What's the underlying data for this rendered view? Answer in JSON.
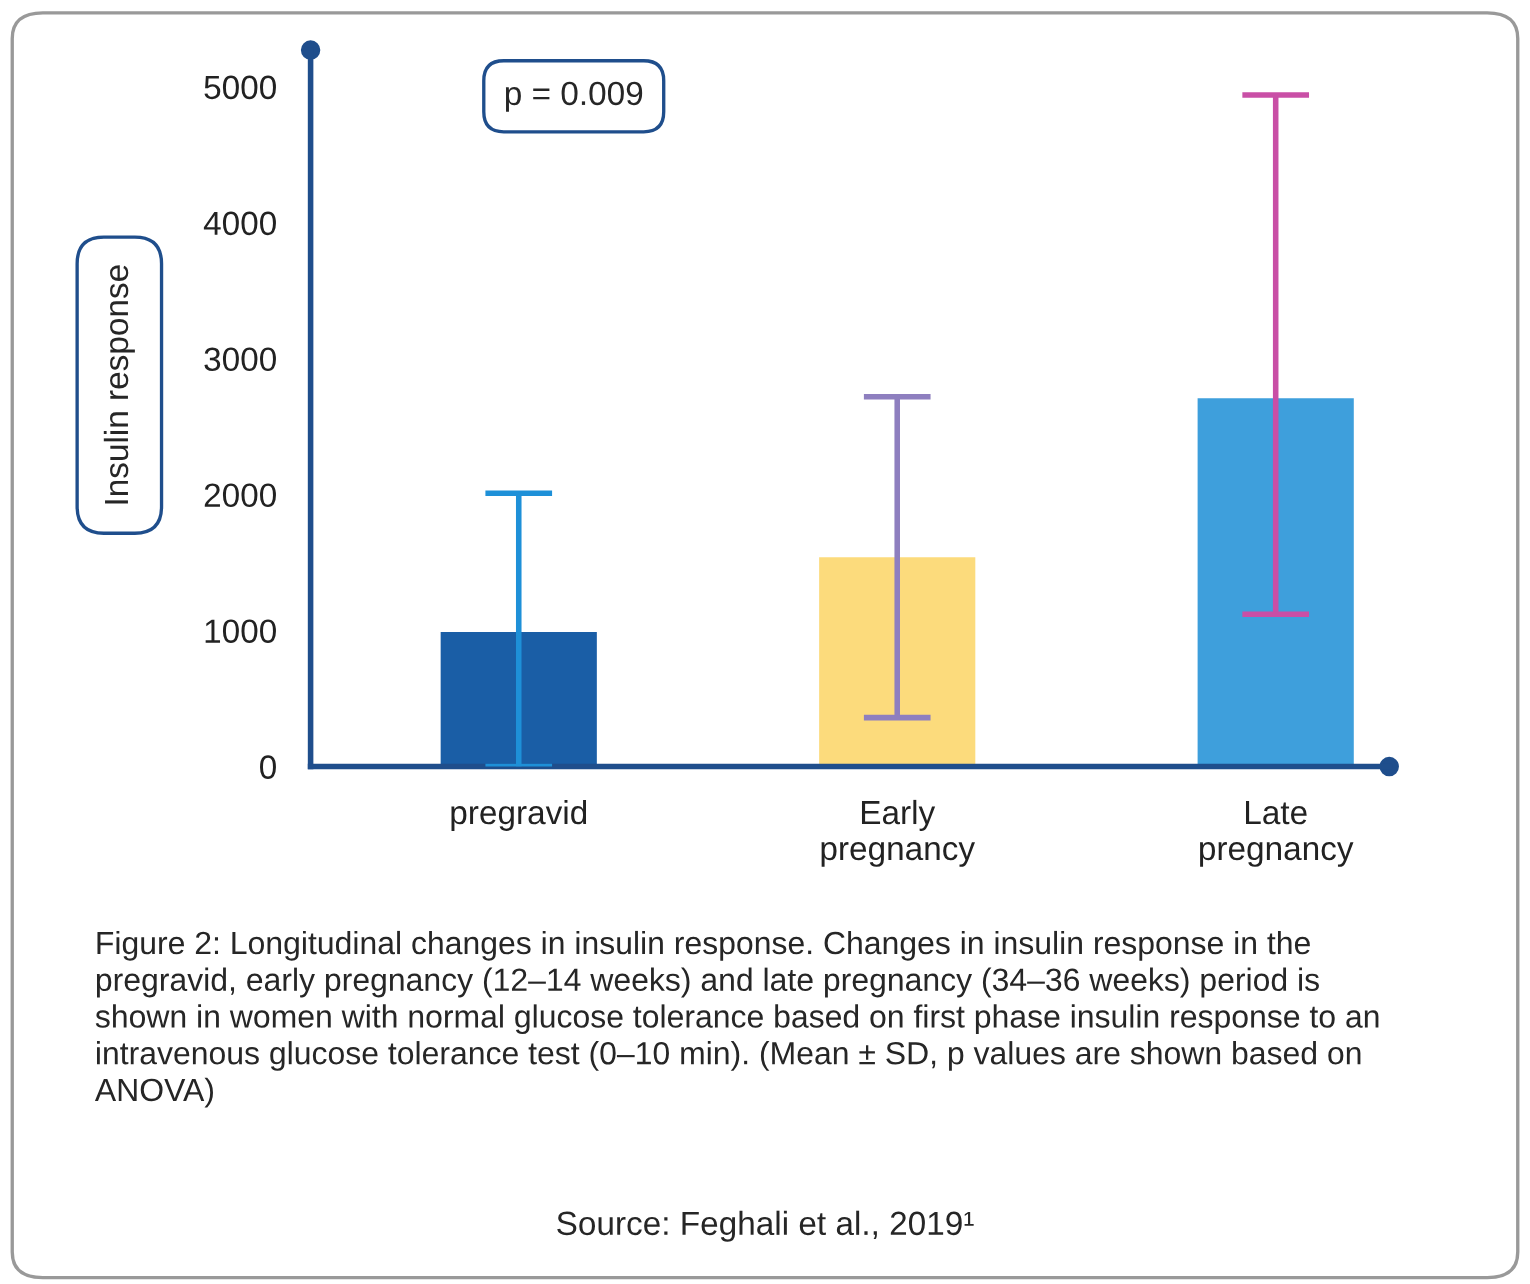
{
  "chart_data": {
    "type": "bar",
    "categories": [
      "pregravid",
      "Early\npregnancy",
      "Late\npregnancy"
    ],
    "values": [
      1000,
      1550,
      2720
    ],
    "colors": [
      "#1a5ea6",
      "#fcdb7c",
      "#3e9fdc"
    ],
    "errors": [
      [
        0,
        2010
      ],
      [
        360,
        2720
      ],
      [
        1120,
        4940
      ]
    ],
    "ylabel": "Insulin response",
    "ylim": [
      0,
      5270
    ],
    "yticks": [
      0,
      1000,
      2000,
      3000,
      4000,
      5000
    ],
    "grid": false,
    "annotations": [
      "p = 0.009",
      "Figure 2: Longitudinal changes in insulin response. Changes in insulin response in the pregravid, early pregnancy (12–14 weeks) and late pregnancy (34–36 weeks) period is shown in women with normal glucose tolerance based on first phase insulin response to an intravenous glucose tolerance test (0–10 min). (Mean ± SD, p values are shown based on ANOVA)",
      "Source: Feghali et al., 2019¹"
    ]
  }
}
